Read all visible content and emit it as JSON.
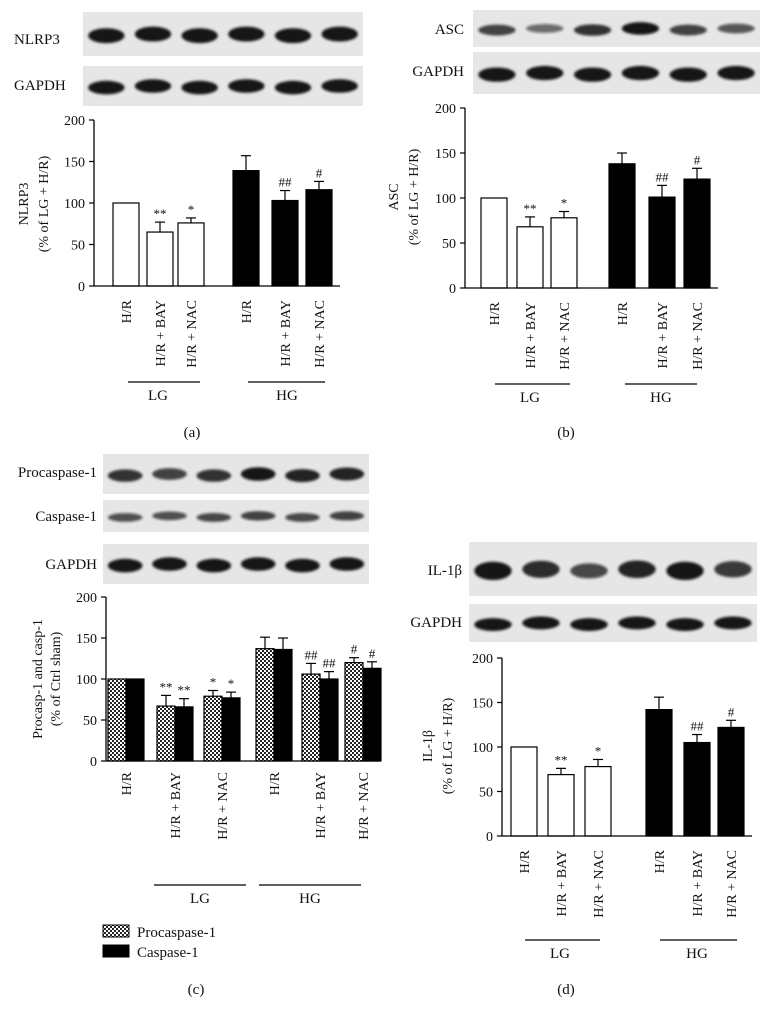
{
  "chart_data": [
    {
      "panel": "(a)",
      "type": "bar",
      "blot_labels": [
        "NLRP3",
        "GAPDH"
      ],
      "ylabel_lines": [
        "NLRP3",
        "(% of LG + H/R)"
      ],
      "ylim": [
        0,
        200
      ],
      "yticks": [
        0,
        50,
        100,
        150,
        200
      ],
      "categories": [
        "H/R",
        "H/R + BAY",
        "H/R + NAC",
        "H/R",
        "H/R + BAY",
        "H/R + NAC"
      ],
      "groups": [
        {
          "label": "LG",
          "indices": [
            0,
            1,
            2
          ]
        },
        {
          "label": "HG",
          "indices": [
            3,
            4,
            5
          ]
        }
      ],
      "series": [
        {
          "fills": [
            "white",
            "white",
            "white",
            "black",
            "black",
            "black"
          ],
          "values": [
            100,
            65,
            76,
            139,
            103,
            116
          ],
          "errors": [
            0,
            12,
            6,
            18,
            12,
            10
          ],
          "annotations": [
            "",
            "**",
            "*",
            "",
            "##",
            "#"
          ]
        }
      ],
      "legend": []
    },
    {
      "panel": "(b)",
      "type": "bar",
      "blot_labels": [
        "ASC",
        "GAPDH"
      ],
      "ylabel_lines": [
        "ASC",
        "(% of LG + H/R)"
      ],
      "ylim": [
        0,
        200
      ],
      "yticks": [
        0,
        50,
        100,
        150,
        200
      ],
      "categories": [
        "H/R",
        "H/R + BAY",
        "H/R + NAC",
        "H/R",
        "H/R + BAY",
        "H/R + NAC"
      ],
      "groups": [
        {
          "label": "LG",
          "indices": [
            0,
            1,
            2
          ]
        },
        {
          "label": "HG",
          "indices": [
            3,
            4,
            5
          ]
        }
      ],
      "series": [
        {
          "fills": [
            "white",
            "white",
            "white",
            "black",
            "black",
            "black"
          ],
          "values": [
            100,
            68,
            78,
            138,
            101,
            121
          ],
          "errors": [
            0,
            11,
            7,
            12,
            13,
            12
          ],
          "annotations": [
            "",
            "**",
            "*",
            "",
            "##",
            "#"
          ]
        }
      ],
      "legend": []
    },
    {
      "panel": "(c)",
      "type": "bar",
      "blot_labels": [
        "Procaspase-1",
        "Caspase-1",
        "GAPDH"
      ],
      "ylabel_lines": [
        "Procasp-1 and casp-1",
        "(% of Ctrl sham)"
      ],
      "ylim": [
        0,
        200
      ],
      "yticks": [
        0,
        50,
        100,
        150,
        200
      ],
      "categories": [
        "H/R",
        "H/R + BAY",
        "H/R + NAC",
        "H/R",
        "H/R + BAY",
        "H/R + NAC"
      ],
      "groups": [
        {
          "label": "LG",
          "indices": [
            0,
            1,
            2
          ]
        },
        {
          "label": "HG",
          "indices": [
            3,
            4,
            5
          ]
        }
      ],
      "series": [
        {
          "name": "Procaspase-1",
          "fill": "checker",
          "values": [
            100,
            67,
            79,
            137,
            106,
            120
          ],
          "errors": [
            0,
            13,
            7,
            14,
            13,
            6
          ],
          "annotations": [
            "",
            "**",
            "*",
            "",
            "##",
            "#"
          ]
        },
        {
          "name": "Caspase-1",
          "fill": "black",
          "values": [
            100,
            66,
            77,
            136,
            100,
            113
          ],
          "errors": [
            0,
            10,
            7,
            14,
            9,
            8
          ],
          "annotations": [
            "",
            "**",
            "*",
            "",
            "##",
            "#"
          ]
        }
      ],
      "legend": [
        "Procaspase-1",
        "Caspase-1"
      ]
    },
    {
      "panel": "(d)",
      "type": "bar",
      "blot_labels": [
        "IL-1β",
        "GAPDH"
      ],
      "ylabel_lines": [
        "IL-1β",
        "(% of LG + H/R)"
      ],
      "ylim": [
        0,
        200
      ],
      "yticks": [
        0,
        50,
        100,
        150,
        200
      ],
      "categories": [
        "H/R",
        "H/R + BAY",
        "H/R + NAC",
        "H/R",
        "H/R + BAY",
        "H/R + NAC"
      ],
      "groups": [
        {
          "label": "LG",
          "indices": [
            0,
            1,
            2
          ]
        },
        {
          "label": "HG",
          "indices": [
            3,
            4,
            5
          ]
        }
      ],
      "series": [
        {
          "fills": [
            "white",
            "white",
            "white",
            "black",
            "black",
            "black"
          ],
          "values": [
            100,
            69,
            78,
            142,
            105,
            122
          ],
          "errors": [
            0,
            7,
            8,
            14,
            9,
            8
          ],
          "annotations": [
            "",
            "**",
            "*",
            "",
            "##",
            "#"
          ]
        }
      ],
      "legend": []
    }
  ],
  "theme": {
    "bar_black": "#000000",
    "bar_white": "#ffffff",
    "blot_bg": "#e6e6e6",
    "band": "#151515"
  }
}
